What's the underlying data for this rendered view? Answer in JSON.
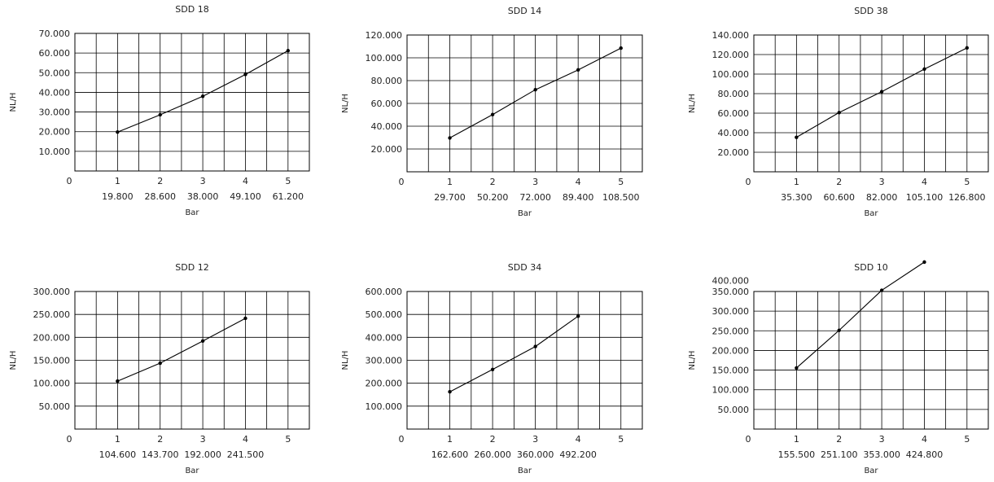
{
  "chart_data": [
    {
      "type": "line",
      "title": "SDD 18",
      "xlabel": "Bar",
      "ylabel": "NL/H",
      "x": [
        1,
        2,
        3,
        4,
        5
      ],
      "xlim": [
        0,
        5.5
      ],
      "ylim": [
        0,
        70
      ],
      "y_ticks": [
        "0",
        "10.000",
        "20.000",
        "30.000",
        "40.000",
        "50.000",
        "60.000",
        "70.000"
      ],
      "x_ticks": [
        "0",
        "1",
        "2",
        "3",
        "4",
        "5"
      ],
      "values": [
        19.8,
        28.6,
        38.0,
        49.1,
        61.2
      ],
      "value_labels": [
        "19.800",
        "28.600",
        "38.000",
        "49.100",
        "61.200"
      ],
      "grid": true
    },
    {
      "type": "line",
      "title": "SDD 14",
      "xlabel": "Bar",
      "ylabel": "NL/H",
      "x": [
        1,
        2,
        3,
        4,
        5
      ],
      "xlim": [
        0,
        5.5
      ],
      "ylim": [
        0,
        120
      ],
      "y_ticks": [
        "0",
        "20.000",
        "40.000",
        "60.000",
        "80.000",
        "100.000",
        "120.000"
      ],
      "x_ticks": [
        "0",
        "1",
        "2",
        "3",
        "4",
        "5"
      ],
      "values": [
        29.7,
        50.2,
        72.0,
        89.4,
        108.5
      ],
      "value_labels": [
        "29.700",
        "50.200",
        "72.000",
        "89.400",
        "108.500"
      ],
      "grid": true
    },
    {
      "type": "line",
      "title": "SDD 38",
      "xlabel": "Bar",
      "ylabel": "NL/H",
      "x": [
        1,
        2,
        3,
        4,
        5
      ],
      "xlim": [
        0,
        5.5
      ],
      "ylim": [
        0,
        140
      ],
      "y_ticks": [
        "0",
        "20.000",
        "40.000",
        "60.000",
        "80.000",
        "100.000",
        "120.000",
        "140.000"
      ],
      "x_ticks": [
        "0",
        "1",
        "2",
        "3",
        "4",
        "5"
      ],
      "values": [
        35.3,
        60.6,
        82.0,
        105.1,
        126.8
      ],
      "value_labels": [
        "35.300",
        "60.600",
        "82.000",
        "105.100",
        "126.800"
      ],
      "grid": true
    },
    {
      "type": "line",
      "title": "SDD 12",
      "xlabel": "Bar",
      "ylabel": "NL/H",
      "x": [
        1,
        2,
        3,
        4
      ],
      "xlim": [
        0,
        5.5
      ],
      "ylim": [
        0,
        300
      ],
      "y_ticks": [
        "0",
        "50.000",
        "100.000",
        "150.000",
        "200.000",
        "250.000",
        "300.000"
      ],
      "x_ticks": [
        "0",
        "1",
        "2",
        "3",
        "4",
        "5"
      ],
      "values": [
        104.6,
        143.7,
        192.0,
        241.5
      ],
      "value_labels": [
        "104.600",
        "143.700",
        "192.000",
        "241.500"
      ],
      "grid": true
    },
    {
      "type": "line",
      "title": "SDD 34",
      "xlabel": "Bar",
      "ylabel": "NL/H",
      "x": [
        1,
        2,
        3,
        4
      ],
      "xlim": [
        0,
        5.5
      ],
      "ylim": [
        0,
        600
      ],
      "y_ticks": [
        "0",
        "100.000",
        "200.000",
        "300.000",
        "400.000",
        "500.000",
        "600.000"
      ],
      "x_ticks": [
        "0",
        "1",
        "2",
        "3",
        "4",
        "5"
      ],
      "values": [
        162.6,
        260.0,
        360.0,
        492.2
      ],
      "value_labels": [
        "162.600",
        "260.000",
        "360.000",
        "492.200"
      ],
      "grid": true
    },
    {
      "type": "line",
      "title": "SDD 10",
      "xlabel": "Bar",
      "ylabel": "NL/H",
      "x": [
        1,
        2,
        3,
        4
      ],
      "xlim": [
        0,
        5.5
      ],
      "ylim": [
        0,
        350
      ],
      "y_ticks": [
        "0",
        "50.000",
        "100.000",
        "150.000",
        "200.000",
        "250.000",
        "300.000",
        "350.000",
        "400.000"
      ],
      "y_tick_values": [
        0,
        50,
        100,
        150,
        200,
        250,
        300,
        350,
        400
      ],
      "x_ticks": [
        "0",
        "1",
        "2",
        "3",
        "4",
        "5"
      ],
      "values": [
        155.5,
        251.1,
        353.0,
        424.8
      ],
      "value_labels": [
        "155.500",
        "251.100",
        "353.000",
        "424.800"
      ],
      "grid": true
    }
  ]
}
